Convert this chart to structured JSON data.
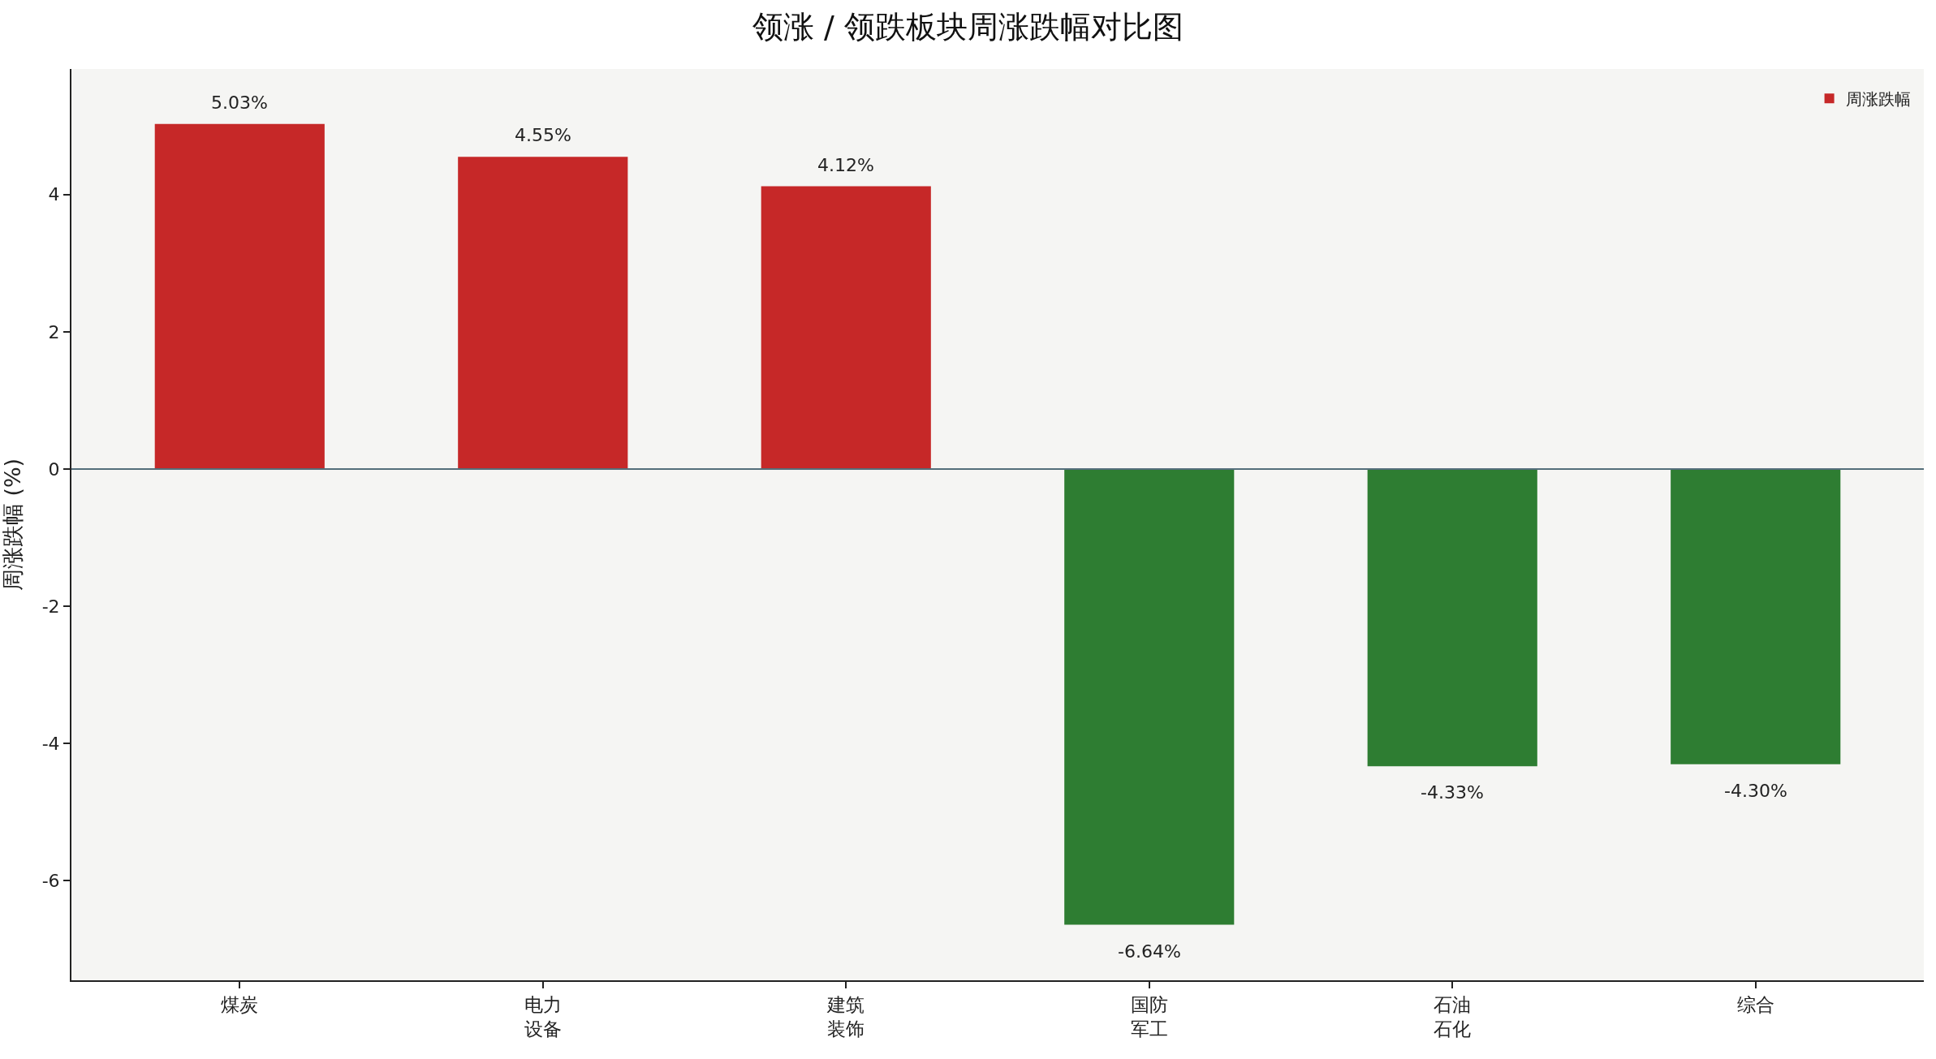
{
  "chart_data": {
    "type": "bar",
    "title": "领涨 / 领跌板块周涨跌幅对比图",
    "ylabel": "周涨跌幅 (%)",
    "categories": [
      "煤炭",
      "电力设备",
      "建筑装饰",
      "国防军工",
      "石油石化",
      "综合"
    ],
    "series": [
      {
        "name": "周涨跌幅",
        "colors": [
          "#c62828",
          "#c62828",
          "#c62828",
          "#2e7d32",
          "#2e7d32",
          "#2e7d32"
        ],
        "values": [
          5.03,
          4.55,
          4.12,
          -6.64,
          -4.33,
          -4.3
        ],
        "value_labels": [
          "5.03%",
          "4.55%",
          "4.12%",
          "-6.64%",
          "-4.33%",
          "-4.30%"
        ]
      }
    ],
    "ylim": [
      -7.45,
      5.83
    ],
    "yticks": [
      -6,
      -4,
      -2,
      0,
      2,
      4
    ],
    "ref_lines": [
      {
        "axis": "y",
        "value": 0,
        "color": "#546e7a"
      }
    ],
    "grid": false,
    "legend": "top right"
  }
}
